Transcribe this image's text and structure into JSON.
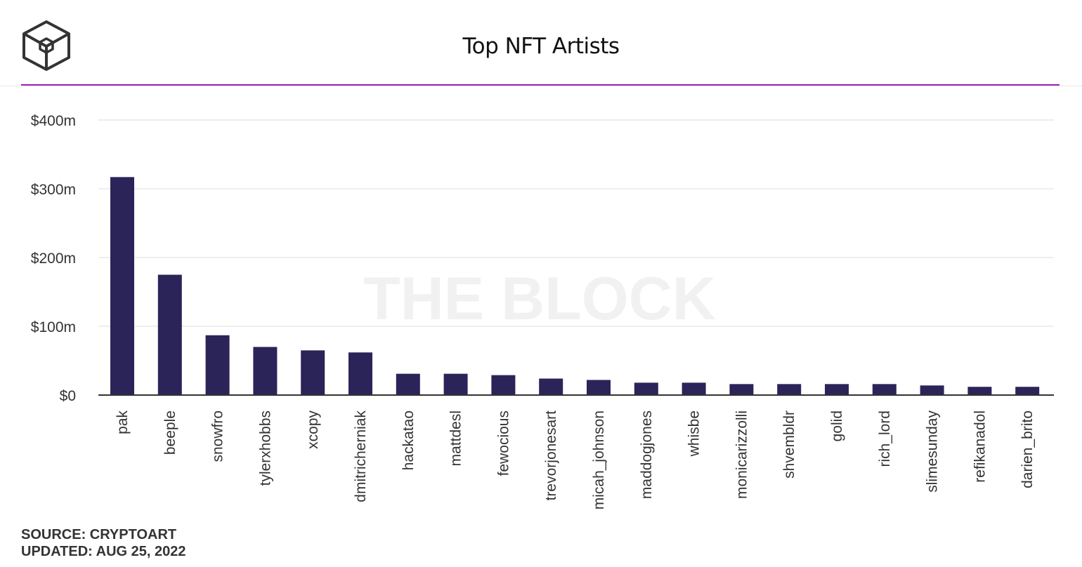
{
  "header": {
    "title": "Top NFT Artists",
    "logo_icon": "the-block-cube-logo"
  },
  "colors": {
    "accent_line": "#9b1fbf",
    "bar": "#2b2459",
    "grid": "#eeeeee",
    "axis": "#333333",
    "watermark": "#f1f1f1"
  },
  "watermark": "THE BLOCK",
  "footer": {
    "source": "SOURCE: CRYPTOART",
    "updated": "UPDATED: AUG 25, 2022"
  },
  "chart_data": {
    "type": "bar",
    "title": "Top NFT Artists",
    "xlabel": "",
    "ylabel": "",
    "ylim": [
      0,
      400
    ],
    "yticks": [
      0,
      100,
      200,
      300,
      400
    ],
    "ytick_labels": [
      "$0",
      "$100m",
      "$200m",
      "$300m",
      "$400m"
    ],
    "grid": true,
    "categories": [
      "pak",
      "beeple",
      "snowfro",
      "tylerxhobbs",
      "xcopy",
      "dmitricherniak",
      "hackatao",
      "mattdesl",
      "fewocious",
      "trevorjonesart",
      "micah_johnson",
      "maddogjones",
      "whisbe",
      "monicarizzolli",
      "shvembldr",
      "golid",
      "rich_lord",
      "slimesunday",
      "refikanadol",
      "darien_brito"
    ],
    "values": [
      317,
      175,
      87,
      70,
      65,
      62,
      31,
      31,
      29,
      24,
      22,
      18,
      18,
      16,
      16,
      16,
      16,
      14,
      12,
      12
    ]
  }
}
